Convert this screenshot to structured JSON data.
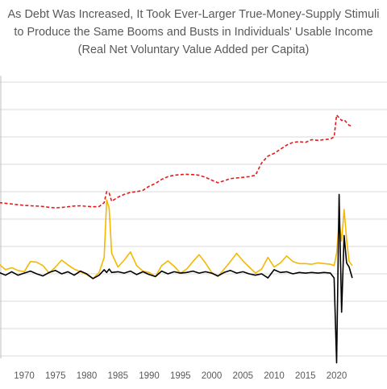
{
  "chart_data": {
    "type": "line",
    "title_lines": [
      "As Debt Was Increased, It Took Ever-Larger True-Money-Supply Stimuli",
      "to Produce the Same Booms and Busts in Individuals' Usable Income",
      "(Real Net Voluntary Value Added per Capita)"
    ],
    "xlabel": "",
    "ylabel": "",
    "xlim": [
      1966,
      2023
    ],
    "x_ticks": [
      1970,
      1975,
      1980,
      1985,
      1990,
      1995,
      2000,
      2005,
      2010,
      2015,
      2020
    ],
    "grid": "horizontal",
    "legend": "none",
    "series": [
      {
        "color": "#e41a1c",
        "style": "dashed",
        "points": [
          [
            1966,
            5.2
          ],
          [
            1967,
            5.15
          ],
          [
            1968,
            5.1
          ],
          [
            1969,
            5.05
          ],
          [
            1970,
            5.0
          ],
          [
            1971,
            4.97
          ],
          [
            1972,
            4.95
          ],
          [
            1973,
            4.92
          ],
          [
            1974,
            4.86
          ],
          [
            1975,
            4.82
          ],
          [
            1976,
            4.85
          ],
          [
            1977,
            4.9
          ],
          [
            1978,
            4.95
          ],
          [
            1979,
            4.97
          ],
          [
            1980,
            4.93
          ],
          [
            1981,
            4.9
          ],
          [
            1982,
            4.92
          ],
          [
            1982.8,
            5.2
          ],
          [
            1983.2,
            6.0
          ],
          [
            1983.6,
            5.9
          ],
          [
            1984,
            5.3
          ],
          [
            1985,
            5.6
          ],
          [
            1986,
            5.8
          ],
          [
            1987,
            5.95
          ],
          [
            1988,
            6.0
          ],
          [
            1989,
            6.1
          ],
          [
            1990,
            6.4
          ],
          [
            1991,
            6.6
          ],
          [
            1992,
            6.9
          ],
          [
            1993,
            7.1
          ],
          [
            1994,
            7.2
          ],
          [
            1995,
            7.25
          ],
          [
            1996,
            7.27
          ],
          [
            1997,
            7.25
          ],
          [
            1998,
            7.2
          ],
          [
            1999,
            7.05
          ],
          [
            2000,
            6.85
          ],
          [
            2001,
            6.65
          ],
          [
            2002,
            6.8
          ],
          [
            2003,
            6.95
          ],
          [
            2004,
            7.0
          ],
          [
            2005,
            7.05
          ],
          [
            2006,
            7.1
          ],
          [
            2007,
            7.2
          ],
          [
            2008,
            8.1
          ],
          [
            2009,
            8.6
          ],
          [
            2010,
            8.8
          ],
          [
            2011,
            9.1
          ],
          [
            2012,
            9.4
          ],
          [
            2013,
            9.6
          ],
          [
            2014,
            9.65
          ],
          [
            2015,
            9.6
          ],
          [
            2016,
            9.8
          ],
          [
            2017,
            9.75
          ],
          [
            2018,
            9.8
          ],
          [
            2019,
            9.85
          ],
          [
            2019.6,
            10.0
          ],
          [
            2020.0,
            11.6
          ],
          [
            2020.4,
            11.4
          ],
          [
            2020.8,
            11.2
          ],
          [
            2021.2,
            11.25
          ],
          [
            2021.6,
            11.05
          ],
          [
            2022.0,
            10.85
          ],
          [
            2022.5,
            10.8
          ]
        ]
      },
      {
        "color": "#f5b800",
        "style": "solid",
        "points": [
          [
            1966,
            0.7
          ],
          [
            1967,
            0.3
          ],
          [
            1968,
            0.45
          ],
          [
            1969,
            0.25
          ],
          [
            1970,
            0.15
          ],
          [
            1971,
            0.9
          ],
          [
            1972,
            0.85
          ],
          [
            1973,
            0.6
          ],
          [
            1974,
            0.05
          ],
          [
            1975,
            0.5
          ],
          [
            1976,
            1.0
          ],
          [
            1977,
            0.65
          ],
          [
            1978,
            0.35
          ],
          [
            1979,
            0.15
          ],
          [
            1980,
            -0.05
          ],
          [
            1981,
            -0.35
          ],
          [
            1982,
            0.1
          ],
          [
            1982.8,
            1.2
          ],
          [
            1983.2,
            5.4
          ],
          [
            1983.6,
            4.8
          ],
          [
            1984,
            1.5
          ],
          [
            1985,
            0.5
          ],
          [
            1986,
            1.0
          ],
          [
            1987,
            1.6
          ],
          [
            1988,
            0.6
          ],
          [
            1989,
            0.2
          ],
          [
            1990,
            0.1
          ],
          [
            1991,
            -0.2
          ],
          [
            1992,
            0.6
          ],
          [
            1993,
            0.95
          ],
          [
            1994,
            0.55
          ],
          [
            1995,
            0.05
          ],
          [
            1996,
            0.35
          ],
          [
            1997,
            0.9
          ],
          [
            1998,
            1.4
          ],
          [
            1999,
            0.8
          ],
          [
            2000,
            0.1
          ],
          [
            2001,
            -0.2
          ],
          [
            2002,
            0.35
          ],
          [
            2003,
            0.9
          ],
          [
            2004,
            1.5
          ],
          [
            2005,
            0.95
          ],
          [
            2006,
            0.5
          ],
          [
            2007,
            0.05
          ],
          [
            2008,
            0.35
          ],
          [
            2009,
            1.2
          ],
          [
            2010,
            0.5
          ],
          [
            2011,
            0.8
          ],
          [
            2012,
            1.3
          ],
          [
            2013,
            0.9
          ],
          [
            2014,
            0.75
          ],
          [
            2015,
            0.75
          ],
          [
            2016,
            0.7
          ],
          [
            2017,
            0.8
          ],
          [
            2018,
            0.75
          ],
          [
            2019,
            0.7
          ],
          [
            2019.6,
            0.6
          ],
          [
            2020.0,
            1.5
          ],
          [
            2020.4,
            3.8
          ],
          [
            2020.8,
            2.4
          ],
          [
            2021.2,
            4.7
          ],
          [
            2021.6,
            2.5
          ],
          [
            2022.0,
            0.9
          ],
          [
            2022.5,
            0.6
          ]
        ]
      },
      {
        "color": "#000000",
        "style": "solid",
        "points": [
          [
            1966,
            0.1
          ],
          [
            1967,
            -0.1
          ],
          [
            1968,
            0.15
          ],
          [
            1969,
            -0.1
          ],
          [
            1970,
            0.05
          ],
          [
            1971,
            0.2
          ],
          [
            1972,
            0.0
          ],
          [
            1973,
            -0.15
          ],
          [
            1974,
            0.1
          ],
          [
            1975,
            0.25
          ],
          [
            1976,
            0.0
          ],
          [
            1977,
            0.15
          ],
          [
            1978,
            -0.1
          ],
          [
            1979,
            0.2
          ],
          [
            1980,
            0.0
          ],
          [
            1981,
            -0.35
          ],
          [
            1982,
            -0.1
          ],
          [
            1982.8,
            0.3
          ],
          [
            1983.2,
            0.1
          ],
          [
            1983.6,
            0.35
          ],
          [
            1984,
            0.1
          ],
          [
            1985,
            0.15
          ],
          [
            1986,
            0.05
          ],
          [
            1987,
            0.2
          ],
          [
            1988,
            -0.05
          ],
          [
            1989,
            0.15
          ],
          [
            1990,
            -0.05
          ],
          [
            1991,
            -0.2
          ],
          [
            1992,
            0.2
          ],
          [
            1993,
            0.0
          ],
          [
            1994,
            0.15
          ],
          [
            1995,
            0.05
          ],
          [
            1996,
            0.1
          ],
          [
            1997,
            0.2
          ],
          [
            1998,
            0.05
          ],
          [
            1999,
            0.15
          ],
          [
            2000,
            0.05
          ],
          [
            2001,
            -0.15
          ],
          [
            2002,
            0.1
          ],
          [
            2003,
            0.25
          ],
          [
            2004,
            0.05
          ],
          [
            2005,
            0.15
          ],
          [
            2006,
            0.0
          ],
          [
            2007,
            -0.1
          ],
          [
            2008,
            0.0
          ],
          [
            2009,
            -0.3
          ],
          [
            2010,
            0.3
          ],
          [
            2011,
            0.1
          ],
          [
            2012,
            0.15
          ],
          [
            2013,
            0.0
          ],
          [
            2014,
            0.1
          ],
          [
            2015,
            0.05
          ],
          [
            2016,
            0.1
          ],
          [
            2017,
            0.05
          ],
          [
            2018,
            0.1
          ],
          [
            2019,
            0.05
          ],
          [
            2019.6,
            -0.3
          ],
          [
            2020.0,
            -6.5
          ],
          [
            2020.4,
            5.8
          ],
          [
            2020.8,
            -2.8
          ],
          [
            2021.2,
            2.8
          ],
          [
            2021.6,
            0.8
          ],
          [
            2022.0,
            0.5
          ],
          [
            2022.5,
            -0.3
          ]
        ]
      }
    ]
  }
}
